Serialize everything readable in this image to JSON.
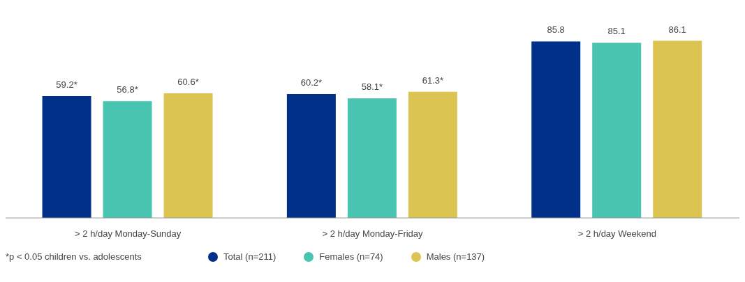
{
  "chart_data": {
    "type": "bar",
    "categories": [
      "> 2 h/day Monday-Sunday",
      "> 2 h/day Monday-Friday",
      "> 2 h/day Weekend"
    ],
    "series": [
      {
        "name": "Total (n=211)",
        "color": "#003087",
        "values": [
          59.2,
          60.2,
          85.8
        ],
        "value_labels": [
          "59.2*",
          "60.2*",
          "85.8"
        ]
      },
      {
        "name": "Females (n=74)",
        "color": "#48c4b1",
        "values": [
          56.8,
          58.1,
          85.1
        ],
        "value_labels": [
          "56.8*",
          "58.1*",
          "85.1"
        ]
      },
      {
        "name": "Males (n=137)",
        "color": "#dcc453",
        "values": [
          60.6,
          61.3,
          86.1
        ],
        "value_labels": [
          "60.6*",
          "61.3*",
          "86.1"
        ]
      }
    ],
    "grid": false,
    "legend": "bottom",
    "annotations": [
      "*p < 0.05 children vs. adolescents"
    ]
  }
}
